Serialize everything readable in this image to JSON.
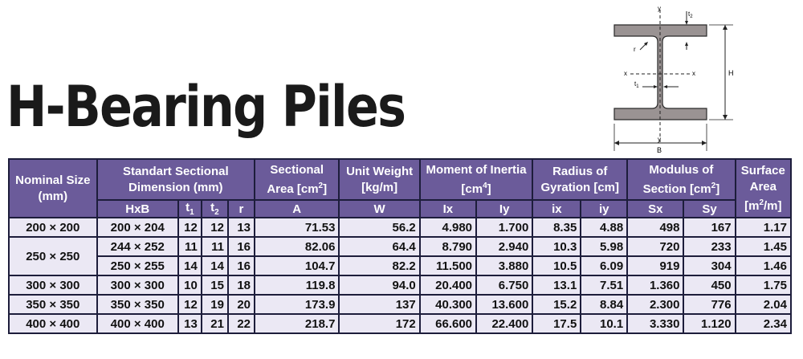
{
  "title": "H-Bearing Piles",
  "diagram": {
    "y_top": "y",
    "y_bottom": "y",
    "x_left": "x",
    "x_right": "x",
    "t1": "t",
    "t1_sub": "1",
    "t2": "t",
    "t2_sub": "2",
    "r": "r",
    "H": "H",
    "B": "B"
  },
  "table": {
    "headers": {
      "nominal": "Nominal Size (mm)",
      "standart": "Standart Sectional Dimension (mm)",
      "sectional_area": "Sectional Area [cm",
      "sectional_area_sup": "2",
      "sectional_area_end": "]",
      "unit_weight": "Unit Weight [kg/m]",
      "moment": "Moment of Inertia [cm",
      "moment_sup": "4",
      "moment_end": "]",
      "radius": "Radius of Gyration [cm]",
      "modulus": "Modulus of Section [cm",
      "modulus_sup": "2",
      "modulus_end": "]",
      "surface": "Surface Area",
      "surface_unit": "[m",
      "surface_sup": "2",
      "surface_unit_end": "/m]"
    },
    "subheaders": {
      "hxb": "HxB",
      "t1": "t",
      "t1_sub": "1",
      "t2": "t",
      "t2_sub": "2",
      "r": "r",
      "a": "A",
      "w": "W",
      "ix_cap": "Ix",
      "iy_cap": "Iy",
      "ix": "ix",
      "iy": "iy",
      "sx": "Sx",
      "sy": "Sy"
    },
    "rows": [
      {
        "nominal": "200 × 200",
        "hxb": "200 × 204",
        "t1": "12",
        "t2": "12",
        "r": "13",
        "a": "71.53",
        "w": "56.2",
        "Ix": "4.980",
        "Iy": "1.700",
        "ix": "8.35",
        "iy": "4.88",
        "sx": "498",
        "sy": "167",
        "surface": "1.17"
      },
      {
        "nominal": "250 × 250",
        "hxb": "244 × 252",
        "t1": "11",
        "t2": "11",
        "r": "16",
        "a": "82.06",
        "w": "64.4",
        "Ix": "8.790",
        "Iy": "2.940",
        "ix": "10.3",
        "iy": "5.98",
        "sx": "720",
        "sy": "233",
        "surface": "1.45"
      },
      {
        "nominal": "",
        "hxb": "250 × 255",
        "t1": "14",
        "t2": "14",
        "r": "16",
        "a": "104.7",
        "w": "82.2",
        "Ix": "11.500",
        "Iy": "3.880",
        "ix": "10.5",
        "iy": "6.09",
        "sx": "919",
        "sy": "304",
        "surface": "1.46"
      },
      {
        "nominal": "300 × 300",
        "hxb": "300 × 300",
        "t1": "10",
        "t2": "15",
        "r": "18",
        "a": "119.8",
        "w": "94.0",
        "Ix": "20.400",
        "Iy": "6.750",
        "ix": "13.1",
        "iy": "7.51",
        "sx": "1.360",
        "sy": "450",
        "surface": "1.75"
      },
      {
        "nominal": "350 × 350",
        "hxb": "350 × 350",
        "t1": "12",
        "t2": "19",
        "r": "20",
        "a": "173.9",
        "w": "137",
        "Ix": "40.300",
        "Iy": "13.600",
        "ix": "15.2",
        "iy": "8.84",
        "sx": "2.300",
        "sy": "776",
        "surface": "2.04"
      },
      {
        "nominal": "400 × 400",
        "hxb": "400 × 400",
        "t1": "13",
        "t2": "21",
        "r": "22",
        "a": "218.7",
        "w": "172",
        "Ix": "66.600",
        "Iy": "22.400",
        "ix": "17.5",
        "iy": "10.1",
        "sx": "3.330",
        "sy": "1.120",
        "surface": "2.34"
      }
    ]
  }
}
